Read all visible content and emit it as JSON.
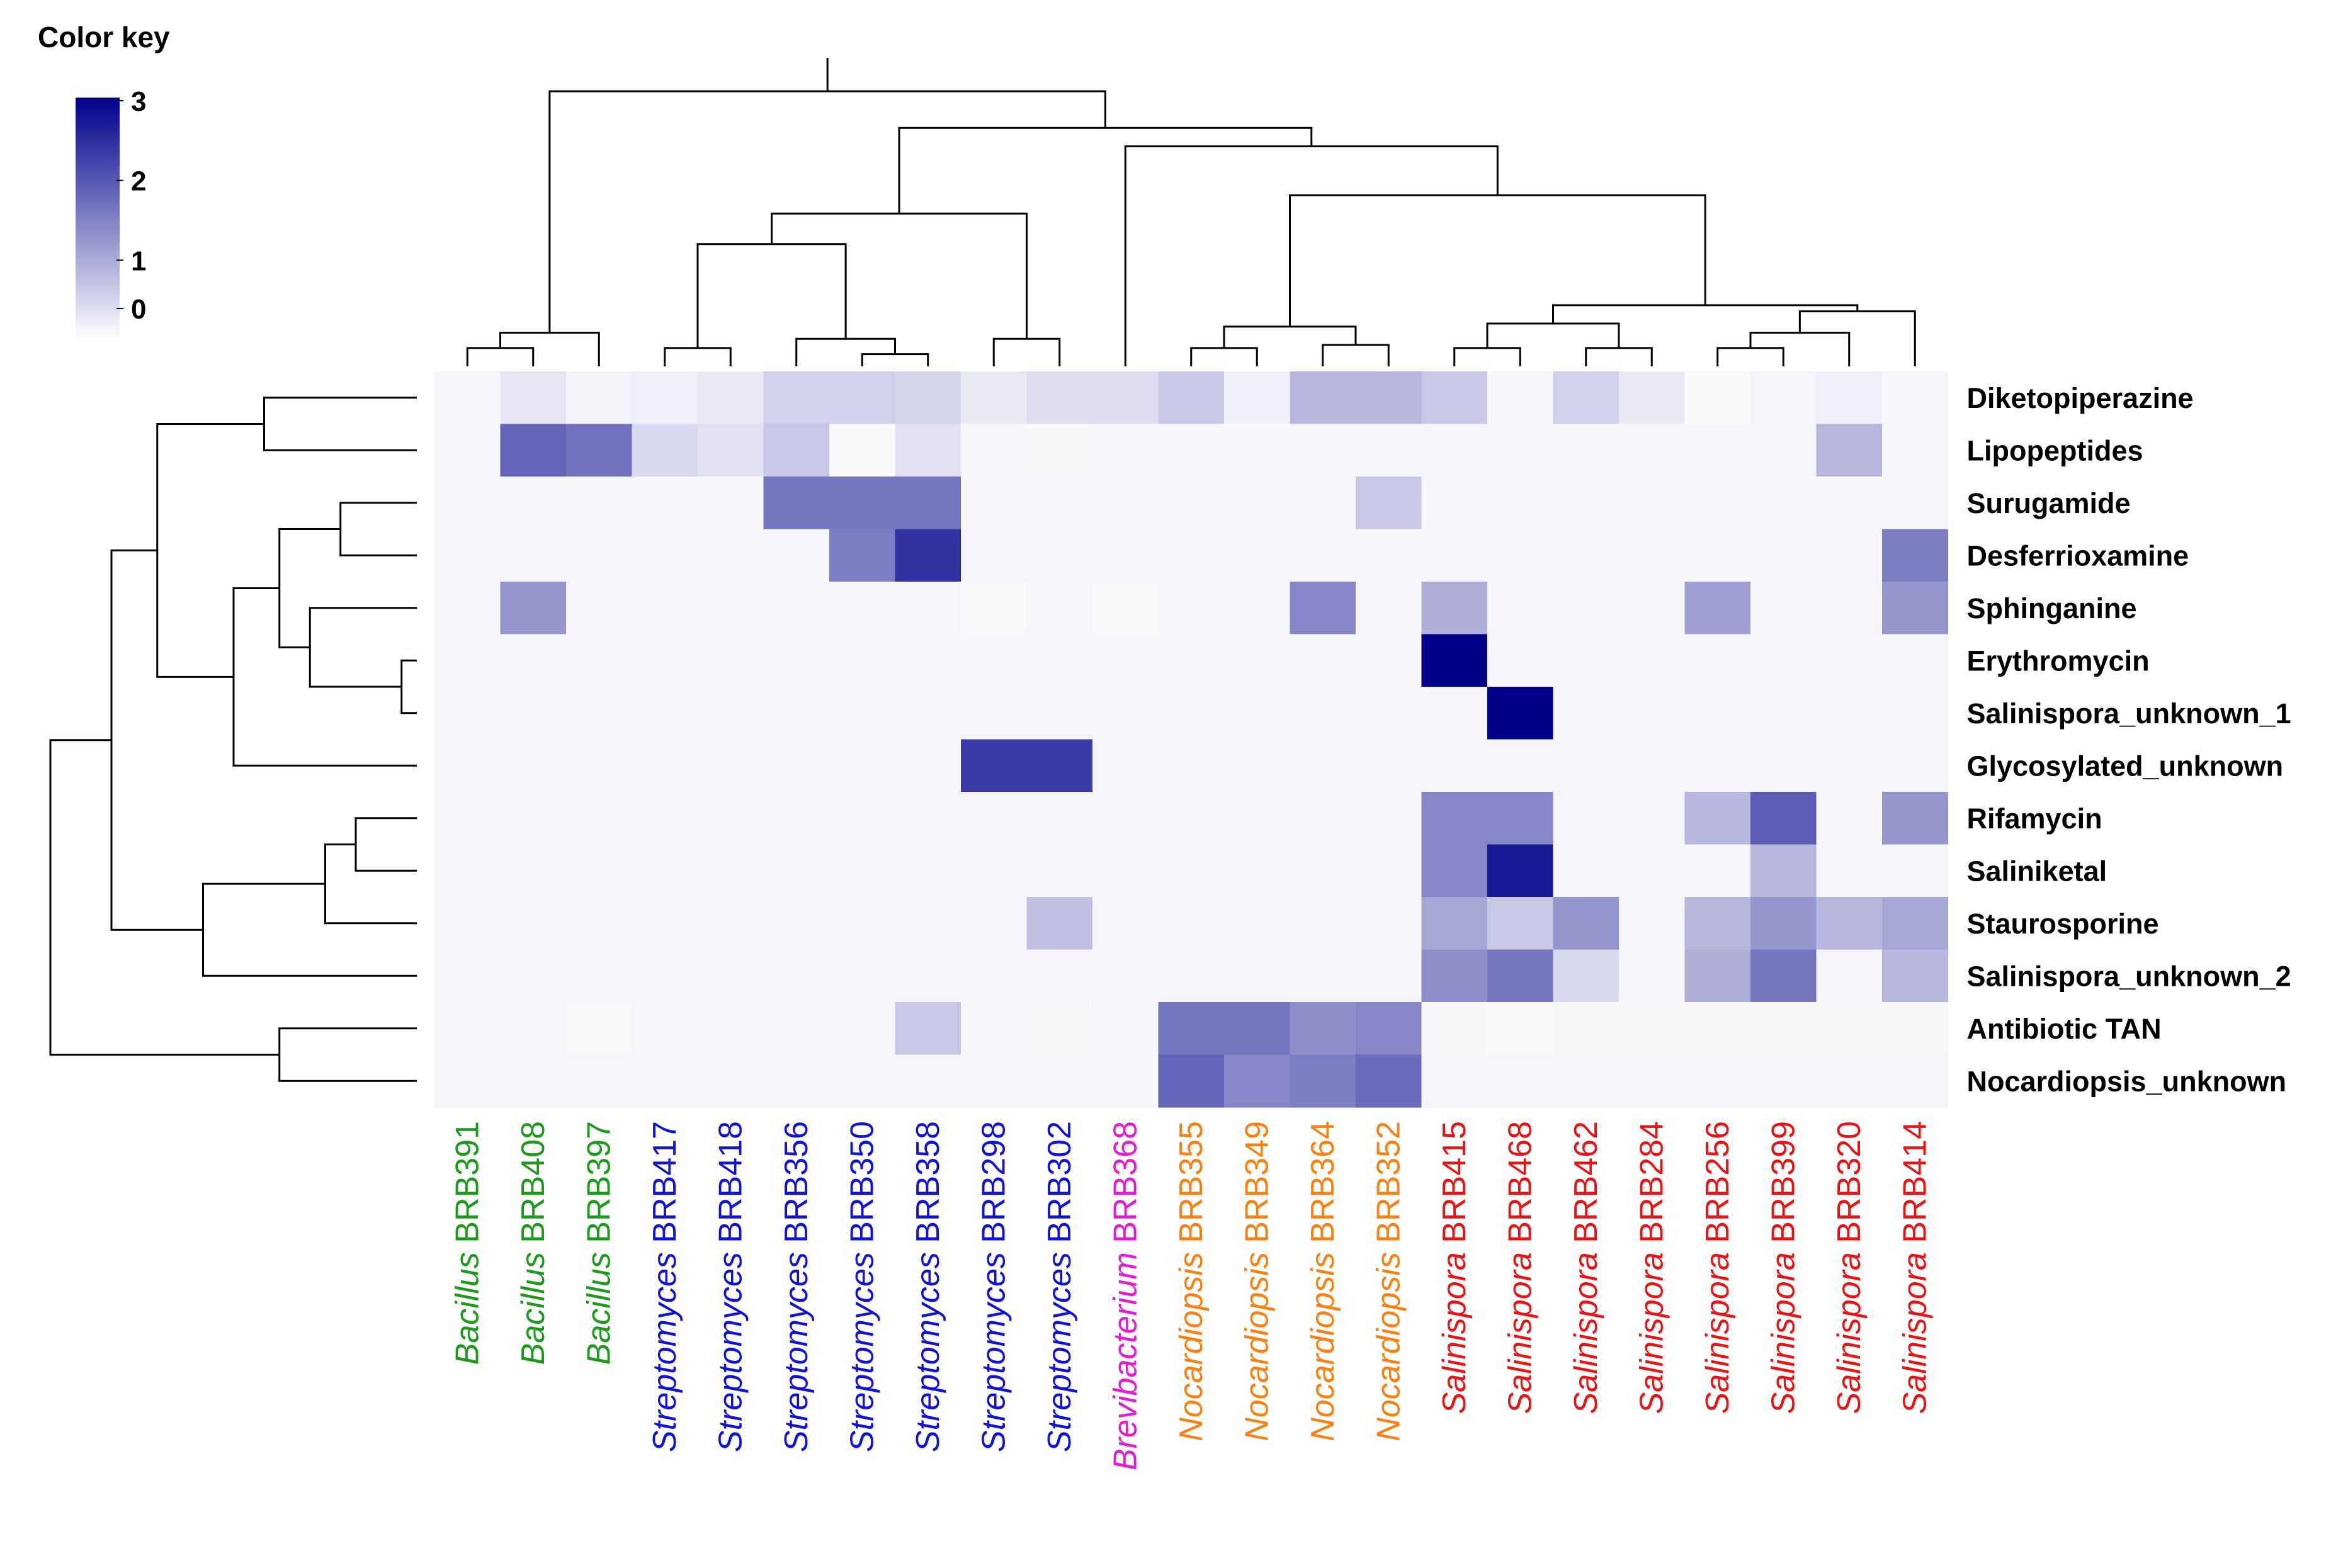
{
  "chart_data": {
    "type": "heatmap",
    "title": "",
    "color_key": {
      "title": "Color key",
      "ticks": [
        "0",
        "1",
        "2",
        "3"
      ],
      "range": [
        0,
        3
      ],
      "colors": [
        "#ffffff",
        "#00008b"
      ]
    },
    "columns": [
      {
        "genus": "Bacillus",
        "strain": "BRB391",
        "color": "#1a9c1a"
      },
      {
        "genus": "Bacillus",
        "strain": "BRB408",
        "color": "#1a9c1a"
      },
      {
        "genus": "Bacillus",
        "strain": "BRB397",
        "color": "#1a9c1a"
      },
      {
        "genus": "Streptomyces",
        "strain": "BRB417",
        "color": "#1111dd"
      },
      {
        "genus": "Streptomyces",
        "strain": "BRB418",
        "color": "#1111dd"
      },
      {
        "genus": "Streptomyces",
        "strain": "BRB356",
        "color": "#1111dd"
      },
      {
        "genus": "Streptomyces",
        "strain": "BRB350",
        "color": "#1111dd"
      },
      {
        "genus": "Streptomyces",
        "strain": "BRB358",
        "color": "#1111dd"
      },
      {
        "genus": "Streptomyces",
        "strain": "BRB298",
        "color": "#1111dd"
      },
      {
        "genus": "Streptomyces",
        "strain": "BRB302",
        "color": "#1111dd"
      },
      {
        "genus": "Brevibacterium",
        "strain": "BRB368",
        "color": "#e619d6"
      },
      {
        "genus": "Nocardiopsis",
        "strain": "BRB355",
        "color": "#ff7f0e"
      },
      {
        "genus": "Nocardiopsis",
        "strain": "BRB349",
        "color": "#ff7f0e"
      },
      {
        "genus": "Nocardiopsis",
        "strain": "BRB364",
        "color": "#ff7f0e"
      },
      {
        "genus": "Nocardiopsis",
        "strain": "BRB352",
        "color": "#ff7f0e"
      },
      {
        "genus": "Salinispora",
        "strain": "BRB415",
        "color": "#ee1111"
      },
      {
        "genus": "Salinispora",
        "strain": "BRB468",
        "color": "#ee1111"
      },
      {
        "genus": "Salinispora",
        "strain": "BRB462",
        "color": "#ee1111"
      },
      {
        "genus": "Salinispora",
        "strain": "BRB284",
        "color": "#ee1111"
      },
      {
        "genus": "Salinispora",
        "strain": "BRB256",
        "color": "#ee1111"
      },
      {
        "genus": "Salinispora",
        "strain": "BRB399",
        "color": "#ee1111"
      },
      {
        "genus": "Salinispora",
        "strain": "BRB320",
        "color": "#ee1111"
      },
      {
        "genus": "Salinispora",
        "strain": "BRB414",
        "color": "#ee1111"
      }
    ],
    "rows": [
      "Diketopiperazine",
      "Lipopeptides",
      "Surugamide",
      "Desferrioxamine",
      "Sphinganine",
      "Erythromycin",
      "Salinispora_unknown_1",
      "Glycosylated_unknown",
      "Rifamycin",
      "Saliniketal",
      "Staurosporine",
      "Salinispora_unknown_2",
      "Antibiotic TAN",
      "Nocardiopsis_unknown"
    ],
    "values": [
      [
        0.05,
        0.25,
        0.1,
        0.15,
        0.2,
        0.5,
        0.5,
        0.45,
        0.2,
        0.35,
        0.35,
        0.6,
        0.15,
        0.8,
        0.8,
        0.6,
        0.05,
        0.5,
        0.2,
        0.0,
        0.05,
        0.15,
        0.05
      ],
      [
        0.05,
        1.8,
        1.65,
        0.4,
        0.3,
        0.6,
        0.0,
        0.3,
        0.05,
        0.03,
        0.05,
        0.05,
        0.05,
        0.05,
        0.05,
        0.05,
        0.05,
        0.05,
        0.05,
        0.05,
        0.05,
        0.8,
        0.05
      ],
      [
        0.05,
        0.05,
        0.05,
        0.05,
        0.05,
        1.6,
        1.6,
        1.6,
        0.05,
        0.05,
        0.05,
        0.05,
        0.05,
        0.05,
        0.6,
        0.05,
        0.05,
        0.05,
        0.05,
        0.05,
        0.05,
        0.05,
        0.05
      ],
      [
        0.05,
        0.05,
        0.05,
        0.05,
        0.05,
        0.05,
        1.5,
        2.4,
        0.05,
        0.05,
        0.05,
        0.05,
        0.05,
        0.05,
        0.05,
        0.05,
        0.05,
        0.05,
        0.05,
        0.05,
        0.05,
        0.05,
        1.5
      ],
      [
        0.05,
        1.2,
        0.05,
        0.05,
        0.05,
        0.05,
        0.05,
        0.05,
        0.0,
        0.05,
        0.0,
        0.05,
        0.05,
        1.4,
        0.05,
        0.9,
        0.05,
        0.05,
        0.05,
        1.1,
        0.05,
        0.05,
        1.2
      ],
      [
        0.05,
        0.05,
        0.05,
        0.05,
        0.05,
        0.05,
        0.05,
        0.05,
        0.05,
        0.05,
        0.05,
        0.05,
        0.05,
        0.05,
        0.05,
        3.0,
        0.05,
        0.05,
        0.05,
        0.05,
        0.05,
        0.05,
        0.05
      ],
      [
        0.05,
        0.05,
        0.05,
        0.05,
        0.05,
        0.05,
        0.05,
        0.05,
        0.05,
        0.05,
        0.05,
        0.05,
        0.05,
        0.05,
        0.05,
        0.05,
        3.0,
        0.05,
        0.05,
        0.05,
        0.05,
        0.05,
        0.05
      ],
      [
        0.05,
        0.05,
        0.05,
        0.05,
        0.05,
        0.05,
        0.05,
        0.05,
        2.3,
        2.3,
        0.05,
        0.05,
        0.05,
        0.05,
        0.05,
        0.05,
        0.05,
        0.05,
        0.05,
        0.05,
        0.05,
        0.05,
        0.05
      ],
      [
        0.05,
        0.05,
        0.05,
        0.05,
        0.05,
        0.05,
        0.05,
        0.05,
        0.05,
        0.05,
        0.05,
        0.05,
        0.05,
        0.05,
        0.05,
        1.4,
        1.4,
        0.05,
        0.05,
        0.8,
        1.9,
        0.05,
        1.2
      ],
      [
        0.05,
        0.05,
        0.05,
        0.05,
        0.05,
        0.05,
        0.05,
        0.05,
        0.05,
        0.05,
        0.05,
        0.05,
        0.05,
        0.05,
        0.05,
        1.4,
        2.7,
        0.05,
        0.05,
        0.05,
        0.8,
        0.05,
        0.05
      ],
      [
        0.05,
        0.05,
        0.05,
        0.05,
        0.05,
        0.05,
        0.05,
        0.05,
        0.05,
        0.7,
        0.05,
        0.05,
        0.05,
        0.05,
        0.05,
        1.0,
        0.6,
        1.2,
        0.05,
        0.8,
        1.2,
        0.8,
        1.0
      ],
      [
        0.05,
        0.05,
        0.05,
        0.05,
        0.05,
        0.05,
        0.05,
        0.05,
        0.05,
        0.05,
        0.05,
        0.05,
        0.05,
        0.05,
        0.05,
        1.3,
        1.6,
        0.4,
        0.05,
        0.9,
        1.6,
        0.05,
        0.8
      ],
      [
        0.05,
        0.05,
        0.0,
        0.05,
        0.05,
        0.05,
        0.05,
        0.6,
        0.05,
        0.03,
        0.05,
        1.6,
        1.6,
        1.3,
        1.4,
        0.03,
        0.0,
        0.03,
        0.03,
        0.03,
        0.03,
        0.03,
        0.03
      ],
      [
        0.05,
        0.05,
        0.05,
        0.05,
        0.05,
        0.05,
        0.05,
        0.05,
        0.05,
        0.05,
        0.05,
        1.8,
        1.4,
        1.5,
        1.7,
        0.05,
        0.05,
        0.05,
        0.05,
        0.05,
        0.05,
        0.05,
        0.05
      ]
    ],
    "column_dendrogram": [
      [
        "c0",
        "c1",
        0.3
      ],
      [
        "k0",
        "c2",
        0.55
      ],
      [
        "c3",
        "c4",
        0.3
      ],
      [
        "c6",
        "c7",
        0.2
      ],
      [
        "c5",
        "k3",
        0.45
      ],
      [
        "k2",
        "k4",
        2.0
      ],
      [
        "c8",
        "c9",
        0.45
      ],
      [
        "k5",
        "k6",
        2.5
      ],
      [
        "c11",
        "c12",
        0.3
      ],
      [
        "c13",
        "c14",
        0.35
      ],
      [
        "k8",
        "k9",
        0.65
      ],
      [
        "c15",
        "c16",
        0.3
      ],
      [
        "c17",
        "c18",
        0.3
      ],
      [
        "k11",
        "k12",
        0.7
      ],
      [
        "c19",
        "c20",
        0.3
      ],
      [
        "k14",
        "c21",
        0.55
      ],
      [
        "k15",
        "c22",
        0.9
      ],
      [
        "k13",
        "k16",
        1.0
      ],
      [
        "k10",
        "k17",
        2.8
      ],
      [
        "c10",
        "k18",
        3.6
      ],
      [
        "k7",
        "k19",
        3.9
      ],
      [
        "k1",
        "k20",
        4.5
      ]
    ],
    "row_dendrogram": [
      [
        "r0",
        "r1",
        0.5
      ],
      [
        "r2",
        "r3",
        0.25
      ],
      [
        "r5",
        "r6",
        0.05
      ],
      [
        "r4",
        "k2",
        0.35
      ],
      [
        "k1",
        "k3",
        0.45
      ],
      [
        "k4",
        "r7",
        0.6
      ],
      [
        "k0",
        "k5",
        0.85
      ],
      [
        "r8",
        "r9",
        0.2
      ],
      [
        "k7",
        "r10",
        0.3
      ],
      [
        "k8",
        "r11",
        0.7
      ],
      [
        "k6",
        "k9",
        1.0
      ],
      [
        "r12",
        "r13",
        0.45
      ],
      [
        "k10",
        "k11",
        1.2
      ]
    ]
  }
}
